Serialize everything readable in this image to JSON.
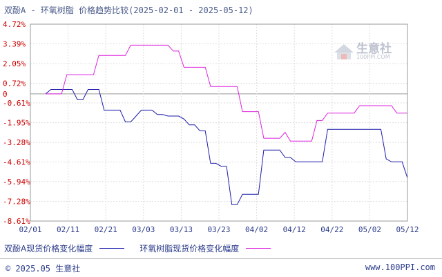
{
  "title": "双酚A - 环氧树脂 价格趋势比较(2025-02-01 - 2025-05-12)",
  "logo_text": "生意社",
  "logo_sub": "100PPI.COM",
  "footer": {
    "left": "© 2025.05 生意社",
    "right": "www.100PPI.com"
  },
  "legend": [
    {
      "label": "双酚A现货价格变化幅度",
      "color": "#1a1aaa"
    },
    {
      "label": "环氧树脂现货价格变化幅度",
      "color": "#dd22dd"
    }
  ],
  "chart_data": {
    "type": "line",
    "y_ticks": [
      "4.72%",
      "3.39%",
      "2.05%",
      "0.72%",
      "0",
      "-0.61%",
      "-1.95%",
      "-3.28%",
      "-4.61%",
      "-5.94%",
      "-7.28%",
      "-8.61%"
    ],
    "y_tick_values": [
      4.72,
      3.39,
      2.05,
      0.72,
      0,
      -0.61,
      -1.95,
      -3.28,
      -4.61,
      -5.94,
      -7.28,
      -8.61
    ],
    "ylim": [
      -8.61,
      4.72
    ],
    "x_ticks": [
      "02/01",
      "02/11",
      "02/21",
      "03/03",
      "03/13",
      "03/23",
      "04/02",
      "04/12",
      "04/22",
      "05/02",
      "05/12"
    ],
    "x_range": [
      0,
      100
    ],
    "grid": true,
    "series": [
      {
        "name": "双酚A现货价格变化幅度",
        "color": "#1a1aaa",
        "points": [
          [
            0,
            0
          ],
          [
            1,
            0.3
          ],
          [
            2,
            0.3
          ],
          [
            3,
            0.3
          ],
          [
            4,
            0.3
          ],
          [
            5,
            0.3
          ],
          [
            6,
            -0.4
          ],
          [
            7,
            -0.4
          ],
          [
            8,
            0.3
          ],
          [
            9,
            0.3
          ],
          [
            10,
            0.3
          ],
          [
            11,
            -1.1
          ],
          [
            12,
            -1.1
          ],
          [
            13,
            -1.1
          ],
          [
            14,
            -1.1
          ],
          [
            15,
            -1.9
          ],
          [
            16,
            -1.9
          ],
          [
            17,
            -1.5
          ],
          [
            18,
            -1.1
          ],
          [
            19,
            -1.1
          ],
          [
            20,
            -1.1
          ],
          [
            21,
            -1.4
          ],
          [
            22,
            -1.4
          ],
          [
            23,
            -1.5
          ],
          [
            24,
            -1.5
          ],
          [
            25,
            -1.5
          ],
          [
            26,
            -1.7
          ],
          [
            27,
            -2.1
          ],
          [
            28,
            -2.1
          ],
          [
            29,
            -2.5
          ],
          [
            30,
            -2.5
          ],
          [
            31,
            -4.7
          ],
          [
            32,
            -4.7
          ],
          [
            33,
            -4.9
          ],
          [
            34,
            -4.9
          ],
          [
            35,
            -7.5
          ],
          [
            36,
            -7.5
          ],
          [
            37,
            -6.8
          ],
          [
            38,
            -6.8
          ],
          [
            39,
            -6.8
          ],
          [
            40,
            -6.8
          ],
          [
            41,
            -3.8
          ],
          [
            42,
            -3.8
          ],
          [
            43,
            -3.8
          ],
          [
            44,
            -3.8
          ],
          [
            45,
            -4.3
          ],
          [
            46,
            -4.3
          ],
          [
            47,
            -4.6
          ],
          [
            48,
            -4.6
          ],
          [
            49,
            -4.6
          ],
          [
            50,
            -4.6
          ],
          [
            51,
            -4.6
          ],
          [
            52,
            -4.6
          ],
          [
            53,
            -2.4
          ],
          [
            54,
            -2.4
          ],
          [
            55,
            -2.4
          ],
          [
            56,
            -2.4
          ],
          [
            57,
            -2.4
          ],
          [
            58,
            -2.4
          ],
          [
            59,
            -2.4
          ],
          [
            60,
            -2.4
          ],
          [
            61,
            -2.4
          ],
          [
            62,
            -2.4
          ],
          [
            63,
            -2.4
          ],
          [
            64,
            -4.4
          ],
          [
            65,
            -4.6
          ],
          [
            66,
            -4.6
          ],
          [
            67,
            -4.6
          ],
          [
            68,
            -5.7
          ]
        ]
      },
      {
        "name": "环氧树脂现货价格变化幅度",
        "color": "#dd22dd",
        "points": [
          [
            0,
            0
          ],
          [
            3,
            0
          ],
          [
            4,
            1.3
          ],
          [
            5,
            1.3
          ],
          [
            6,
            1.3
          ],
          [
            7,
            1.3
          ],
          [
            8,
            1.3
          ],
          [
            9,
            1.3
          ],
          [
            10,
            2.6
          ],
          [
            11,
            2.6
          ],
          [
            12,
            2.6
          ],
          [
            13,
            2.6
          ],
          [
            14,
            2.6
          ],
          [
            15,
            2.6
          ],
          [
            16,
            3.3
          ],
          [
            17,
            3.3
          ],
          [
            18,
            3.3
          ],
          [
            19,
            3.3
          ],
          [
            20,
            3.3
          ],
          [
            21,
            3.3
          ],
          [
            22,
            3.3
          ],
          [
            23,
            3.3
          ],
          [
            24,
            2.9
          ],
          [
            25,
            2.9
          ],
          [
            26,
            1.8
          ],
          [
            27,
            1.8
          ],
          [
            28,
            1.8
          ],
          [
            29,
            1.8
          ],
          [
            30,
            1.8
          ],
          [
            31,
            0.5
          ],
          [
            32,
            0.5
          ],
          [
            33,
            0.5
          ],
          [
            34,
            0.5
          ],
          [
            35,
            0.5
          ],
          [
            36,
            0.5
          ],
          [
            37,
            -1.2
          ],
          [
            38,
            -1.2
          ],
          [
            39,
            -1.2
          ],
          [
            40,
            -1.2
          ],
          [
            41,
            -3.0
          ],
          [
            42,
            -3.0
          ],
          [
            43,
            -3.0
          ],
          [
            44,
            -3.0
          ],
          [
            45,
            -2.6
          ],
          [
            46,
            -3.2
          ],
          [
            47,
            -3.2
          ],
          [
            48,
            -3.2
          ],
          [
            49,
            -3.2
          ],
          [
            50,
            -3.2
          ],
          [
            51,
            -1.8
          ],
          [
            52,
            -1.8
          ],
          [
            53,
            -1.3
          ],
          [
            54,
            -1.3
          ],
          [
            55,
            -1.3
          ],
          [
            56,
            -1.3
          ],
          [
            57,
            -1.3
          ],
          [
            58,
            -1.3
          ],
          [
            59,
            -0.8
          ],
          [
            60,
            -0.8
          ],
          [
            61,
            -0.8
          ],
          [
            62,
            -0.8
          ],
          [
            63,
            -0.8
          ],
          [
            64,
            -0.8
          ],
          [
            65,
            -0.8
          ],
          [
            66,
            -1.3
          ],
          [
            67,
            -1.3
          ],
          [
            68,
            -1.3
          ]
        ]
      }
    ]
  }
}
